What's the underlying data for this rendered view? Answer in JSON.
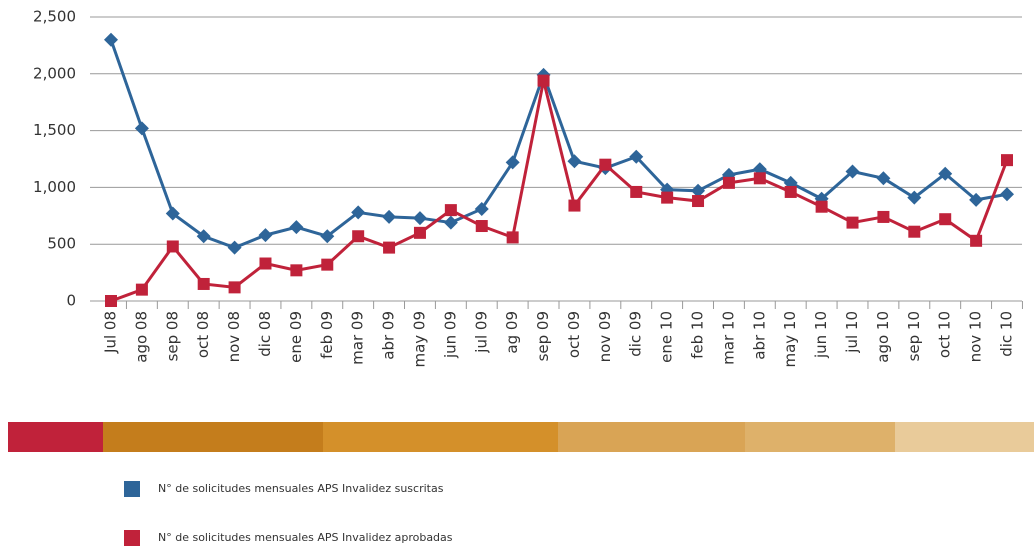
{
  "chart_data": {
    "type": "line",
    "categories": [
      "Jul 08",
      "ago 08",
      "sep 08",
      "oct 08",
      "nov 08",
      "dic 08",
      "ene 09",
      "feb 09",
      "mar 09",
      "abr 09",
      "may 09",
      "jun 09",
      "jul 09",
      "ag 09",
      "sep 09",
      "oct 09",
      "nov 09",
      "dic 09",
      "ene 10",
      "feb 10",
      "mar 10",
      "abr 10",
      "may 10",
      "jun 10",
      "jul 10",
      "ago 10",
      "sep 10",
      "oct 10",
      "nov 10",
      "dic 10"
    ],
    "series": [
      {
        "name": "N° de solicitudes mensuales APS Invalidez suscritas",
        "color": "#2e6599",
        "marker": "diamond",
        "values": [
          2300,
          1520,
          770,
          570,
          470,
          580,
          650,
          570,
          780,
          740,
          730,
          690,
          810,
          1220,
          1990,
          1230,
          1170,
          1270,
          980,
          970,
          1110,
          1160,
          1040,
          900,
          1140,
          1080,
          910,
          1120,
          890,
          940
        ]
      },
      {
        "name": "N° de solicitudes mensuales APS Invalidez aprobadas",
        "color": "#c0223a",
        "marker": "square",
        "values": [
          0,
          100,
          480,
          150,
          120,
          330,
          270,
          320,
          570,
          470,
          600,
          800,
          660,
          560,
          1940,
          840,
          1200,
          960,
          910,
          880,
          1040,
          1080,
          960,
          830,
          690,
          740,
          610,
          720,
          530,
          1240
        ]
      }
    ],
    "ylim": [
      0,
      2500
    ],
    "yticks": [
      0,
      500,
      {
        "value": 1000,
        "label": "1,000"
      },
      {
        "value": 1500,
        "label": "1,500"
      },
      {
        "value": 2000,
        "label": "2,000"
      },
      {
        "value": 2500,
        "label": "2,500"
      }
    ],
    "grid": true
  }
}
